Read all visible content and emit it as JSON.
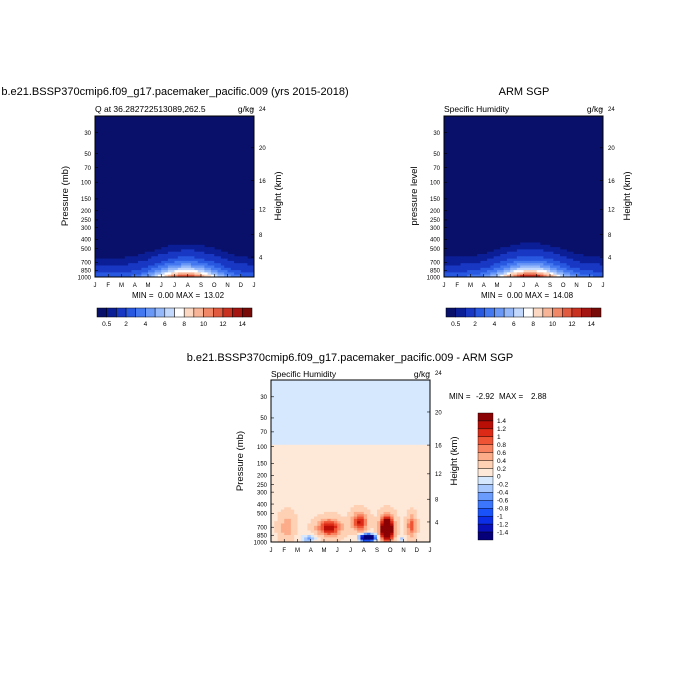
{
  "palette": {
    "full": [
      "#08106a",
      "#0c1e96",
      "#1838c4",
      "#2858e0",
      "#4478f0",
      "#6a98f6",
      "#94b8fa",
      "#c2d8fc",
      "#ffffff",
      "#fcd8c2",
      "#f8b496",
      "#f08868",
      "#e05a40",
      "#c83020",
      "#a41410",
      "#780a08"
    ],
    "diff": [
      "#05007a",
      "#0a10b8",
      "#0c2ee6",
      "#1a52fa",
      "#3c76fc",
      "#6a9cfd",
      "#a6c8fe",
      "#d6e8fe",
      "#fee8d8",
      "#fed0b4",
      "#fcac88",
      "#f88260",
      "#ee5434",
      "#dc2a16",
      "#b80e06",
      "#8a0204"
    ],
    "background_low": "#08106a"
  },
  "chart_data": [
    {
      "type": "contour",
      "title": "b.e21.BSSP370cmip6.f09_g17.pacemaker_pacific.009 (yrs 2015-2018)",
      "left_label": "Q at 36.282722513089,262.5",
      "right_label": "g/kg",
      "ylabel": "Pressure (mb)",
      "right_axis_label": "Height (km)",
      "xticks": [
        "J",
        "F",
        "M",
        "A",
        "M",
        "J",
        "J",
        "A",
        "S",
        "O",
        "N",
        "D",
        "J"
      ],
      "yticks": [
        30,
        50,
        70,
        100,
        150,
        200,
        250,
        300,
        400,
        500,
        700,
        850,
        1000
      ],
      "height_ticks": [
        24,
        20,
        16,
        12,
        8,
        4
      ],
      "ylim": [
        1000,
        20
      ],
      "min_label": "MIN = ",
      "min_value": "0.00",
      "max_label": "MAX = ",
      "max_value": "13.02",
      "peak": 13.02,
      "peak_month": 6.9,
      "colorbar_labels": [
        "0.5",
        "2",
        "4",
        "6",
        "8",
        "10",
        "12",
        "14"
      ],
      "colorbar_levels": [
        0.5,
        1,
        2,
        3,
        4,
        5,
        6,
        7,
        8,
        9,
        10,
        11,
        12,
        13,
        14
      ]
    },
    {
      "type": "contour",
      "title": "ARM SGP",
      "left_label": "Specific Humidity",
      "right_label": "g/kg",
      "ylabel": "pressure level",
      "right_axis_label": "Height (km)",
      "xticks": [
        "J",
        "F",
        "M",
        "A",
        "M",
        "J",
        "J",
        "A",
        "S",
        "O",
        "N",
        "D",
        "J"
      ],
      "yticks": [
        30,
        50,
        70,
        100,
        150,
        200,
        250,
        300,
        400,
        500,
        700,
        850,
        1000
      ],
      "height_ticks": [
        24,
        20,
        16,
        12,
        8,
        4
      ],
      "ylim": [
        1000,
        20
      ],
      "min_label": "MIN = ",
      "min_value": "0.00",
      "max_label": "MAX = ",
      "max_value": "14.08",
      "peak": 14.08,
      "peak_month": 6.5,
      "colorbar_labels": [
        "0.5",
        "2",
        "4",
        "6",
        "8",
        "10",
        "12",
        "14"
      ],
      "colorbar_levels": [
        0.5,
        1,
        2,
        3,
        4,
        5,
        6,
        7,
        8,
        9,
        10,
        11,
        12,
        13,
        14
      ]
    },
    {
      "type": "contour",
      "title": "b.e21.BSSP370cmip6.f09_g17.pacemaker_pacific.009 - ARM SGP",
      "left_label": "Specific Humidity",
      "right_label": "g/kg",
      "ylabel": "Pressure (mb)",
      "right_axis_label": "Height (km)",
      "xticks": [
        "J",
        "F",
        "M",
        "A",
        "M",
        "J",
        "J",
        "A",
        "S",
        "O",
        "N",
        "D",
        "J"
      ],
      "yticks": [
        30,
        50,
        70,
        100,
        150,
        200,
        250,
        300,
        400,
        500,
        700,
        850,
        1000
      ],
      "height_ticks": [
        24,
        20,
        16,
        12,
        8,
        4
      ],
      "ylim": [
        1000,
        20
      ],
      "min_label": "MIN = ",
      "min_value": "-2.92",
      "max_label": "MAX = ",
      "max_value": "2.88",
      "colorbar_labels": [
        "1.4",
        "1.2",
        "1",
        "0.8",
        "0.6",
        "0.4",
        "0.2",
        "0",
        "-0.2",
        "-0.4",
        "-0.6",
        "-0.8",
        "-1",
        "-1.2",
        "-1.4"
      ],
      "colorbar_levels": [
        -1.4,
        -1.2,
        -1,
        -0.8,
        -0.6,
        -0.4,
        -0.2,
        0,
        0.2,
        0.4,
        0.6,
        0.8,
        1,
        1.2,
        1.4
      ],
      "features": [
        {
          "kind": "pos",
          "month": 8.75,
          "pressure": 730,
          "amp": 2.88,
          "spread_m": 0.45,
          "spread_log": 0.11
        },
        {
          "kind": "pos",
          "month": 4.4,
          "pressure": 710,
          "amp": 1.2,
          "spread_m": 0.8,
          "spread_log": 0.08
        },
        {
          "kind": "pos",
          "month": 6.7,
          "pressure": 620,
          "amp": 1.1,
          "spread_m": 0.5,
          "spread_log": 0.09
        },
        {
          "kind": "pos",
          "month": 10.6,
          "pressure": 680,
          "amp": 0.8,
          "spread_m": 0.3,
          "spread_log": 0.1
        },
        {
          "kind": "pos",
          "month": 1.2,
          "pressure": 700,
          "amp": 0.4,
          "spread_m": 0.5,
          "spread_log": 0.12
        },
        {
          "kind": "neg",
          "month": 7.3,
          "pressure": 900,
          "amp": -2.92,
          "spread_m": 0.55,
          "spread_log": 0.035
        },
        {
          "kind": "neg",
          "month": 2.8,
          "pressure": 920,
          "amp": -0.6,
          "spread_m": 0.6,
          "spread_log": 0.04
        },
        {
          "kind": "neg",
          "month": 9.9,
          "pressure": 930,
          "amp": -0.4,
          "spread_m": 0.25,
          "spread_log": 0.03
        }
      ]
    }
  ]
}
